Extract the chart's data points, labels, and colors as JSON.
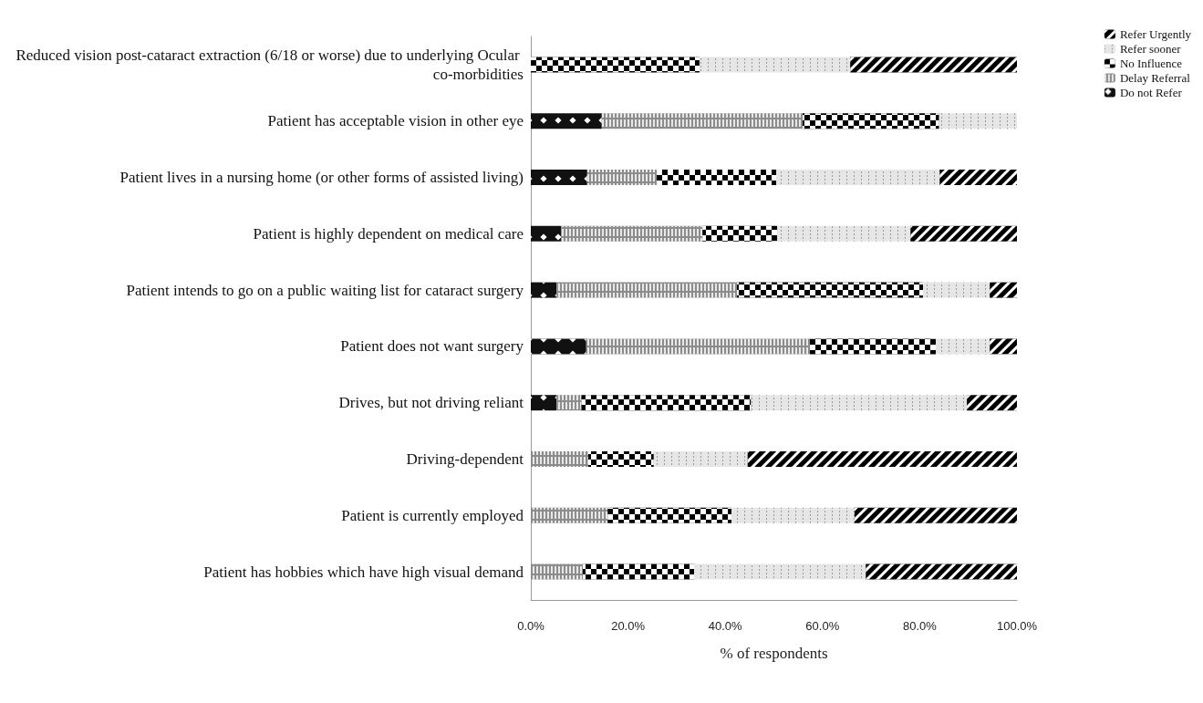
{
  "chart_data": {
    "type": "bar",
    "orientation": "horizontal",
    "stacked": true,
    "xlabel": "% of respondents",
    "categories": [
      "Reduced vision post-cataract extraction (6/18 or worse) due to underlying Ocular co-morbidities",
      "Patient has acceptable vision in other eye",
      "Patient lives in a nursing home (or other forms of assisted living)",
      "Patient is highly dependent on medical care",
      "Patient intends to go on a public waiting list for cataract surgery",
      "Patient does not want surgery",
      "Drives, but not driving reliant",
      "Driving-dependent",
      "Patient is currently employed",
      "Patient has hobbies which have high visual demand"
    ],
    "series": [
      {
        "name": "Do not Refer",
        "color": "#111111",
        "values": [
          0,
          14.6,
          11.6,
          6.2,
          5.3,
          11.4,
          5.3,
          0,
          0,
          0
        ]
      },
      {
        "name": "Delay Referral",
        "color": "#8c8c8c",
        "values": [
          0,
          41.3,
          14.3,
          29.1,
          37.1,
          46.0,
          5.1,
          11.8,
          15.8,
          10.7
        ]
      },
      {
        "name": "No Influence",
        "color": "#000000",
        "values": [
          34.7,
          28.1,
          24.6,
          15.4,
          38.3,
          25.9,
          34.9,
          13.5,
          25.5,
          22.9
        ]
      },
      {
        "name": "Refer sooner",
        "color": "#e6e6e6",
        "values": [
          31.0,
          16.0,
          33.6,
          27.4,
          13.7,
          11.1,
          44.4,
          19.3,
          25.3,
          35.3
        ]
      },
      {
        "name": "Refer Urgently",
        "color": "#000000",
        "values": [
          34.3,
          0,
          15.9,
          21.9,
          5.6,
          5.6,
          10.3,
          55.4,
          33.4,
          31.1
        ]
      }
    ],
    "xlim": [
      0,
      100
    ],
    "xticks": [
      {
        "value": 0,
        "label": "0.0%"
      },
      {
        "value": 20,
        "label": "20.0%"
      },
      {
        "value": 40,
        "label": "40.0%"
      },
      {
        "value": 60,
        "label": "60.0%"
      },
      {
        "value": 80,
        "label": "80.0%"
      },
      {
        "value": 100,
        "label": "100.0%"
      }
    ],
    "grid": false,
    "legend": "top right"
  }
}
